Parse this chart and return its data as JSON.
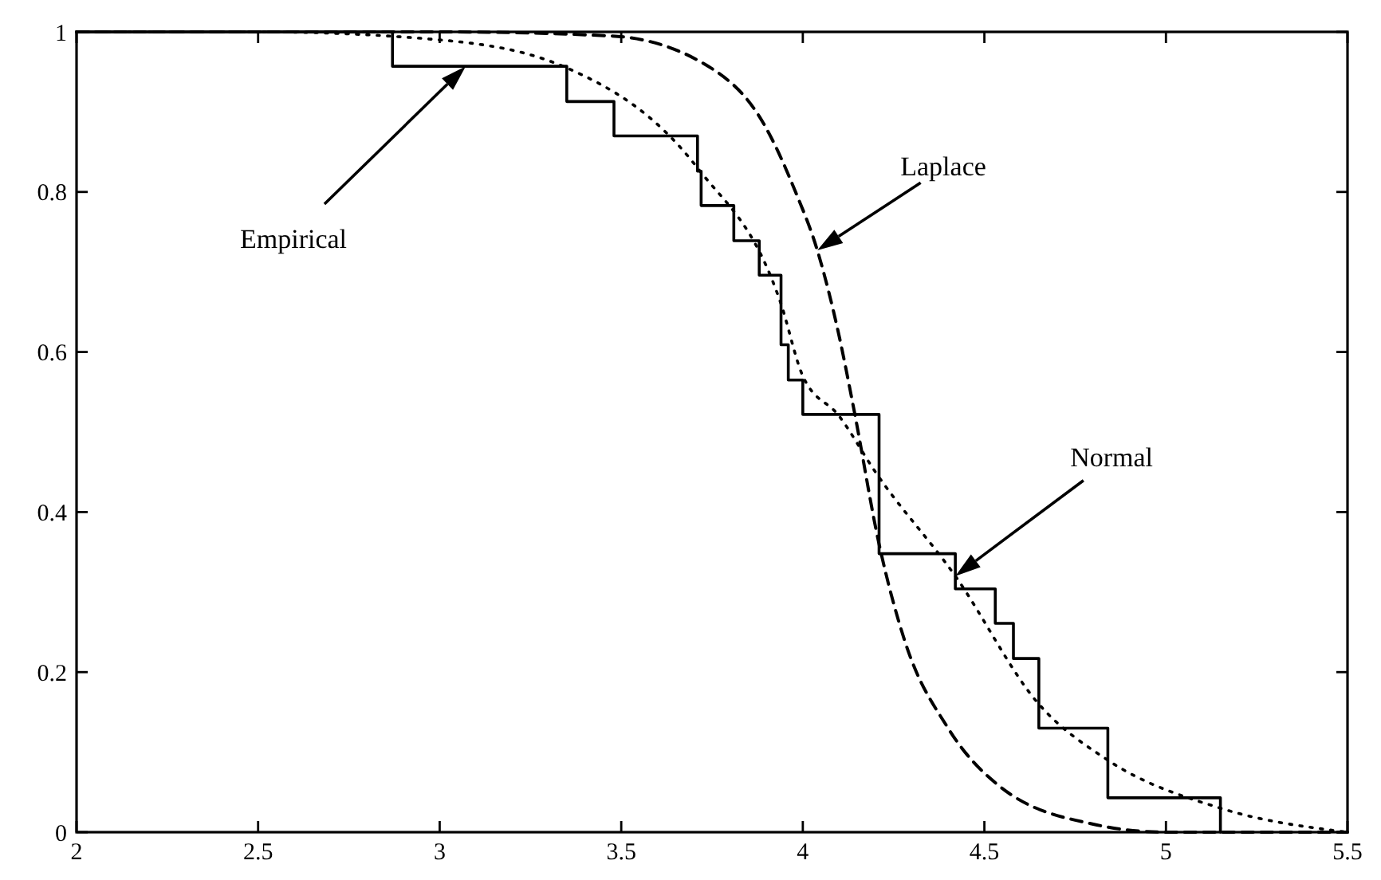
{
  "chart_data": {
    "type": "line",
    "xlim": [
      2,
      5.5
    ],
    "xticks": [
      2,
      2.5,
      3,
      3.5,
      4,
      4.5,
      5,
      5.5
    ],
    "ylim": [
      0,
      1
    ],
    "yticks": [
      0,
      {
        "value": 0.2,
        "label": "0.2"
      },
      {
        "value": 0.4,
        "label": "0.4"
      },
      {
        "value": 0.6,
        "label": "0.6"
      },
      {
        "value": 0.8,
        "label": "0.8"
      },
      1
    ],
    "legend": false,
    "series": [
      {
        "type": "step",
        "color": "#000000",
        "line_style": "solid",
        "x": [
          2,
          2.87,
          3.35,
          3.48,
          3.71,
          3.72,
          3.81,
          3.88,
          3.94,
          3.96,
          4.0,
          4.21,
          4.42,
          4.53,
          4.58,
          4.65,
          4.84,
          5.15
        ],
        "values": [
          1,
          0.957,
          0.913,
          0.87,
          0.826,
          0.783,
          0.739,
          0.696,
          0.609,
          0.565,
          0.522,
          0.348,
          0.304,
          0.261,
          0.217,
          0.13,
          0.043,
          0
        ]
      },
      {
        "color": "#000000",
        "line_style": "dashed",
        "x": [
          2,
          3,
          3.47,
          3.75,
          3.89,
          3.98,
          4.04,
          4.1,
          4.14,
          4.21,
          4.28,
          4.4,
          4.54,
          4.8,
          5.0,
          5.5
        ],
        "values": [
          1,
          1,
          0.995,
          0.954,
          0.887,
          0.8,
          0.727,
          0.62,
          0.53,
          0.36,
          0.24,
          0.13,
          0.058,
          0.01,
          0,
          0
        ]
      },
      {
        "color": "#000000",
        "line_style": "dotted",
        "x": [
          2,
          2.5,
          3,
          3.35,
          3.71,
          3.94,
          4.0,
          4.1,
          4.2,
          4.42,
          4.65,
          4.84,
          5.15,
          5.5
        ],
        "values": [
          1,
          1,
          0.99,
          0.955,
          0.83,
          0.66,
          0.57,
          0.52,
          0.45,
          0.32,
          0.16,
          0.09,
          0.03,
          0
        ]
      }
    ],
    "annotations": [
      "Empirical",
      "Laplace",
      "Normal"
    ]
  }
}
